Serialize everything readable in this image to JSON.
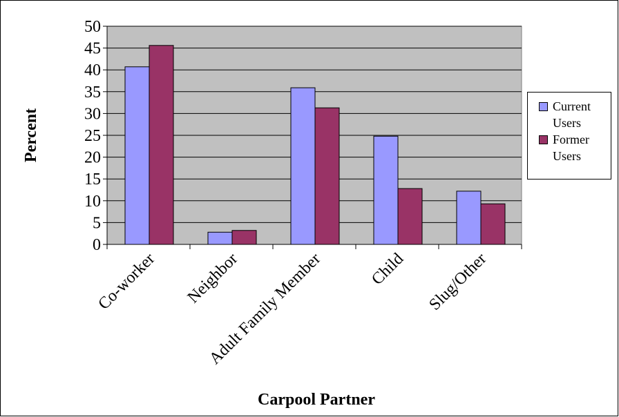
{
  "chart_data": {
    "type": "bar",
    "x_label": "Carpool Partner",
    "y_label": "Percent",
    "categories": [
      "Co-worker",
      "Neighbor",
      "Adult Family Member",
      "Child",
      "Slug/Other"
    ],
    "series": [
      {
        "name": "Current Users",
        "color": "#9999ff",
        "values": [
          40.7,
          2.8,
          35.9,
          24.8,
          12.2
        ]
      },
      {
        "name": "Former Users",
        "color": "#993366",
        "values": [
          45.6,
          3.2,
          31.3,
          12.8,
          9.3
        ]
      }
    ],
    "ylim": [
      0,
      50
    ],
    "yticks": [
      0,
      5,
      10,
      15,
      20,
      25,
      30,
      35,
      40,
      45,
      50
    ],
    "grid": true,
    "legend": "right"
  }
}
